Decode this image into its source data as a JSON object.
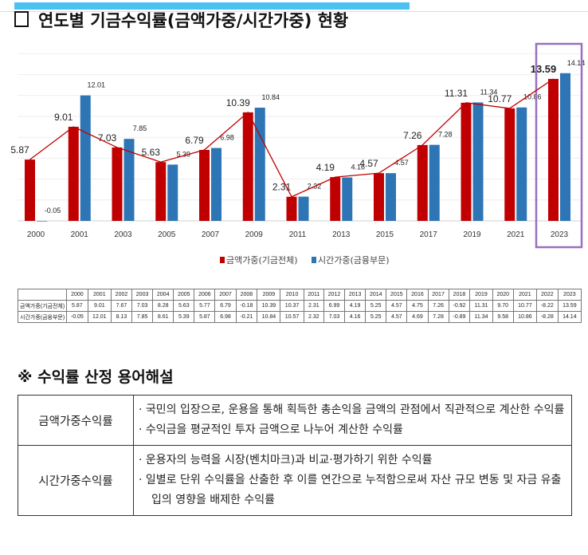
{
  "title": "연도별 기금수익률(금액가중/시간가중) 현황",
  "chart_data": {
    "type": "bar",
    "categories": [
      "2000",
      "2001",
      "2003",
      "2005",
      "2007",
      "2009",
      "2011",
      "2013",
      "2015",
      "2017",
      "2019",
      "2021",
      "2023"
    ],
    "series": [
      {
        "name": "금액가중(기금전체)",
        "color": "#c00000",
        "values": [
          5.87,
          9.01,
          7.03,
          5.63,
          6.79,
          10.39,
          2.31,
          4.19,
          4.57,
          7.26,
          11.31,
          10.77,
          13.59
        ],
        "line_overlay": true
      },
      {
        "name": "시간가중(금융부문)",
        "color": "#2e75b6",
        "values": [
          -0.05,
          12.01,
          7.85,
          5.39,
          6.98,
          10.84,
          2.32,
          4.16,
          4.57,
          7.28,
          11.34,
          10.86,
          14.14
        ]
      }
    ],
    "ylim": [
      0,
      16
    ],
    "grid": true,
    "legend": "bottom",
    "highlight_category": "2023",
    "highlight_color": "#9b6fc0"
  },
  "legend": {
    "s1": "금액가중(기금전체)",
    "s2": "시간가중(금융부문)"
  },
  "table": {
    "years": [
      "2000",
      "2001",
      "2002",
      "2003",
      "2004",
      "2005",
      "2006",
      "2007",
      "2008",
      "2009",
      "2010",
      "2011",
      "2012",
      "2013",
      "2014",
      "2015",
      "2016",
      "2017",
      "2018",
      "2019",
      "2020",
      "2021",
      "2022",
      "2023"
    ],
    "rows": [
      {
        "label": "금액가중(기금전체)",
        "values": [
          "5.87",
          "9.01",
          "7.67",
          "7.03",
          "8.28",
          "5.63",
          "5.77",
          "6.79",
          "-0.18",
          "10.39",
          "10.37",
          "2.31",
          "6.99",
          "4.19",
          "5.25",
          "4.57",
          "4.75",
          "7.26",
          "-0.92",
          "11.31",
          "9.70",
          "10.77",
          "-8.22",
          "13.59"
        ]
      },
      {
        "label": "시간가중(금융부문)",
        "values": [
          "-0.05",
          "12.01",
          "8.13",
          "7.85",
          "8.61",
          "5.39",
          "5.87",
          "6.98",
          "-0.21",
          "10.84",
          "10.57",
          "2.32",
          "7.03",
          "4.16",
          "5.25",
          "4.57",
          "4.69",
          "7.28",
          "-0.89",
          "11.34",
          "9.58",
          "10.86",
          "-8.28",
          "14.14"
        ]
      }
    ]
  },
  "terms_heading": "※ 수익률 산정 용어해설",
  "terms": [
    {
      "term": "금액가중수익률",
      "lines": [
        "· 국민의 입장으로, 운용을 통해 획득한 총손익을 금액의 관점에서 직관적으로 계산한 수익률",
        "· 수익금을 평균적인 투자 금액으로 나누어 계산한 수익률"
      ]
    },
    {
      "term": "시간가중수익률",
      "lines": [
        "· 운용자의 능력을 시장(벤치마크)과 비교·평가하기 위한 수익률",
        "· 일별로 단위 수익률을 산출한 후 이를 연간으로 누적함으로써 자산 규모 변동 및 자금 유출입의 영향을 배제한 수익률"
      ]
    }
  ]
}
